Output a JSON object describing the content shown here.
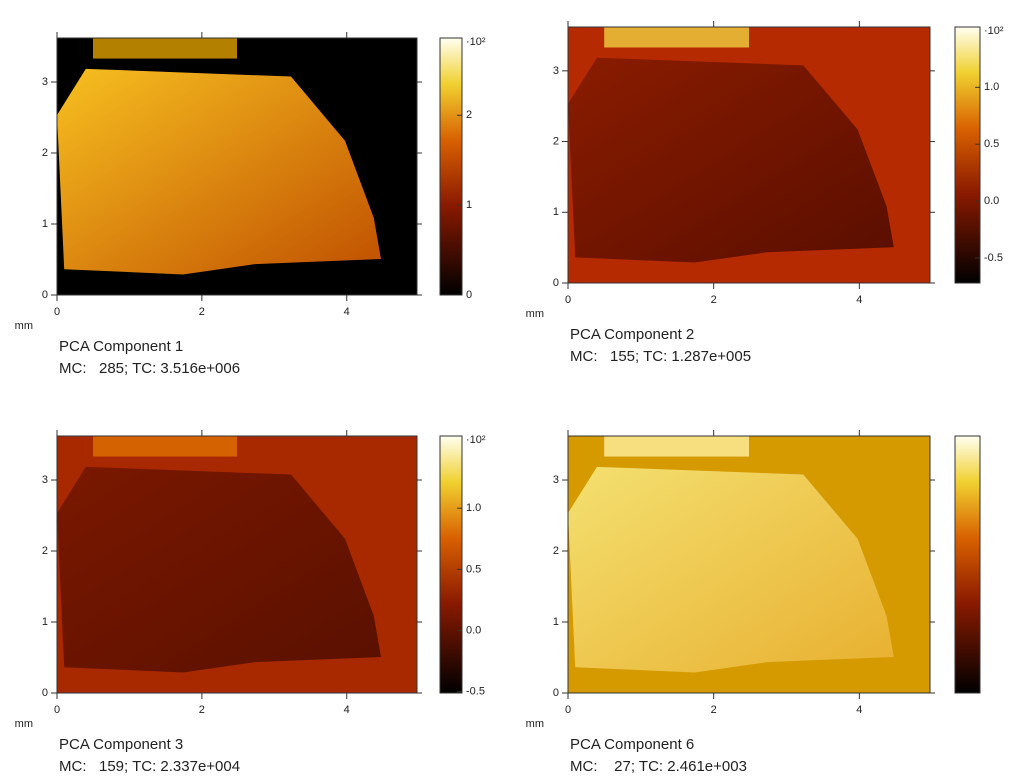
{
  "chart_data": [
    {
      "type": "heatmap",
      "title": "PCA Component 1",
      "subtitle": "MC:   285; TC: 3.516e+006",
      "x_label": "mm",
      "xlim": [
        0,
        4.97
      ],
      "ylim": [
        0,
        3.62
      ],
      "xticks": [
        0,
        2,
        4
      ],
      "yticks": [
        0,
        1,
        2,
        3
      ],
      "colorbar": {
        "label": "·10²",
        "clim": [
          0,
          2.86
        ],
        "ticks": [
          0,
          1,
          2
        ]
      }
    },
    {
      "type": "heatmap",
      "title": "PCA Component 2",
      "subtitle": "MC:   155; TC: 1.287e+005",
      "x_label": "mm",
      "xlim": [
        0,
        4.97
      ],
      "ylim": [
        0,
        3.62
      ],
      "xticks": [
        0,
        2,
        4
      ],
      "yticks": [
        0,
        1,
        2,
        3
      ],
      "colorbar": {
        "label": "·10²",
        "clim": [
          -0.72,
          1.53
        ],
        "ticks": [
          {
            "value": -0.5,
            "label": "-0.5"
          },
          {
            "value": 0,
            "label": "0.0"
          },
          {
            "value": 0.5,
            "label": "0.5"
          },
          {
            "value": 1,
            "label": "1.0"
          }
        ]
      }
    },
    {
      "type": "heatmap",
      "title": "PCA Component 3",
      "subtitle": "MC:   159; TC: 2.337e+004",
      "x_label": "mm",
      "xlim": [
        0,
        4.97
      ],
      "ylim": [
        0,
        3.62
      ],
      "xticks": [
        0,
        2,
        4
      ],
      "yticks": [
        0,
        1,
        2,
        3
      ],
      "colorbar": {
        "label": "·10²",
        "clim": [
          -0.51,
          1.59
        ],
        "ticks": [
          {
            "value": -0.5,
            "label": "-0.5"
          },
          {
            "value": 0,
            "label": "0.0"
          },
          {
            "value": 0.5,
            "label": "0.5"
          },
          {
            "value": 1,
            "label": "1.0"
          }
        ]
      }
    },
    {
      "type": "heatmap",
      "title": "PCA Component 6",
      "subtitle": "MC:    27; TC: 2.461e+003",
      "x_label": "mm",
      "xlim": [
        0,
        4.97
      ],
      "ylim": [
        0,
        3.62
      ],
      "xticks": [
        0,
        2,
        4
      ],
      "yticks": [
        0,
        1,
        2,
        3
      ],
      "colorbar": {}
    }
  ]
}
